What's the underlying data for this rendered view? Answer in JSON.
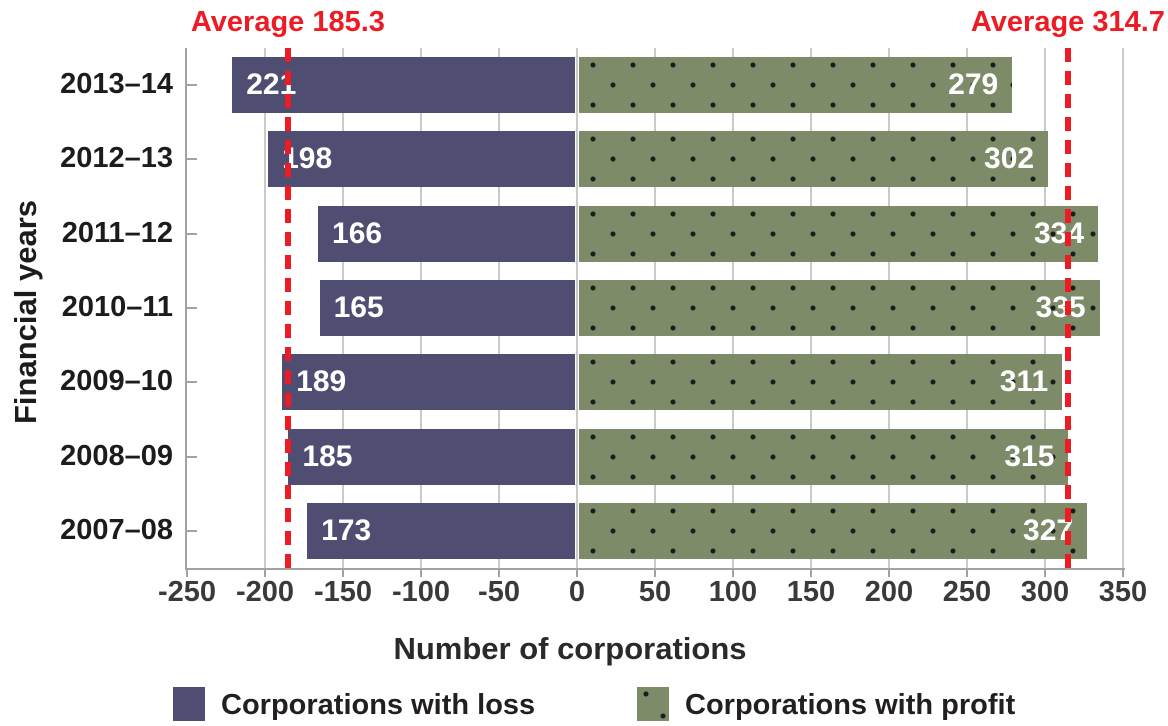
{
  "chart_data": {
    "type": "bar",
    "orientation": "horizontal-diverging",
    "categories": [
      "2013–14",
      "2012–13",
      "2011–12",
      "2010–11",
      "2009–10",
      "2008–09",
      "2007–08"
    ],
    "series": [
      {
        "name": "Corporations with loss",
        "direction": "negative",
        "color": "#4f4e72",
        "values": [
          221,
          198,
          166,
          165,
          189,
          185,
          173
        ]
      },
      {
        "name": "Corporations with profit",
        "direction": "positive",
        "color": "#7e8b69",
        "pattern": "dots",
        "values": [
          279,
          302,
          334,
          335,
          311,
          315,
          327
        ]
      }
    ],
    "xlabel": "Number of corporations",
    "ylabel": "Financial years",
    "xlim": [
      -250,
      350
    ],
    "xticks": [
      -250,
      -200,
      -150,
      -100,
      -50,
      0,
      50,
      100,
      150,
      200,
      250,
      300,
      350
    ],
    "grid": true,
    "legend_position": "bottom",
    "annotations": [
      {
        "label": "Average 185.3",
        "value": -185.3,
        "style": "dashed",
        "color": "#ed1b24"
      },
      {
        "label": "Average 314.7",
        "value": 314.7,
        "style": "dashed",
        "color": "#ed1b24"
      }
    ]
  },
  "colors": {
    "loss_bar": "#4f4e72",
    "profit_bar": "#7e8b69",
    "dot": "#1b1b1b",
    "average_line": "#ed1b24",
    "gridline": "#cacaca",
    "axis_spine": "#a2a2a2",
    "bar_value_text": "#ffffff",
    "tick_text": "#3a3a3a"
  }
}
